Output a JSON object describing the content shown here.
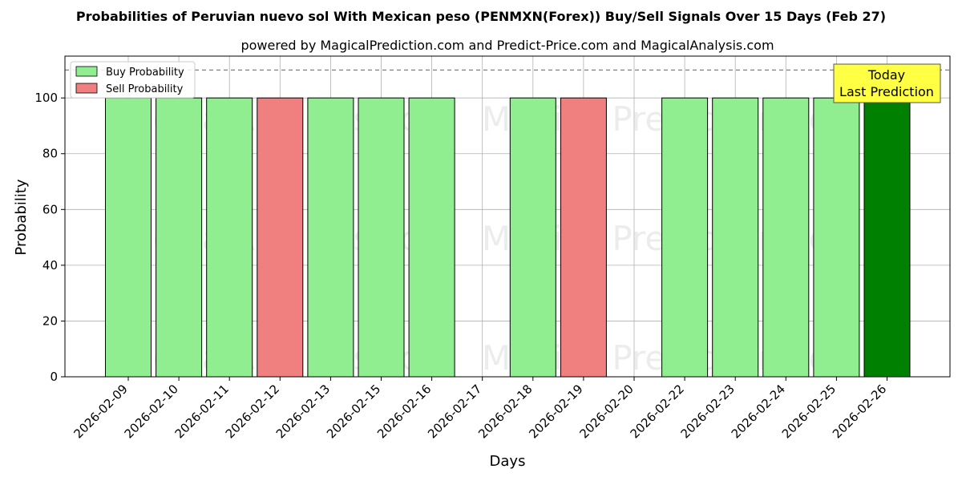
{
  "chart_data": {
    "type": "bar",
    "title": "Probabilities of Peruvian nuevo sol With Mexican peso (PENMXN(Forex)) Buy/Sell Signals Over 15 Days (Feb 27)",
    "subtitle": "powered by MagicalPrediction.com and Predict-Price.com and MagicalAnalysis.com",
    "xlabel": "Days",
    "ylabel": "Probability",
    "ylim": [
      0,
      115
    ],
    "yticks": [
      0,
      20,
      40,
      60,
      80,
      100
    ],
    "reference_line": 110,
    "grid": true,
    "legend_position": "top-left",
    "categories": [
      "2026-02-09",
      "2026-02-10",
      "2026-02-11",
      "2026-02-12",
      "2026-02-13",
      "2026-02-15",
      "2026-02-16",
      "2026-02-17",
      "2026-02-18",
      "2026-02-19",
      "2026-02-20",
      "2026-02-22",
      "2026-02-23",
      "2026-02-24",
      "2026-02-25",
      "2026-02-26"
    ],
    "bars": [
      {
        "date": "2026-02-09",
        "signal": "buy",
        "value": 100
      },
      {
        "date": "2026-02-10",
        "signal": "buy",
        "value": 100
      },
      {
        "date": "2026-02-11",
        "signal": "buy",
        "value": 100
      },
      {
        "date": "2026-02-12",
        "signal": "sell",
        "value": 100
      },
      {
        "date": "2026-02-13",
        "signal": "buy",
        "value": 100
      },
      {
        "date": "2026-02-15",
        "signal": "buy",
        "value": 100
      },
      {
        "date": "2026-02-16",
        "signal": "buy",
        "value": 100
      },
      {
        "date": "2026-02-18",
        "signal": "buy",
        "value": 100
      },
      {
        "date": "2026-02-19",
        "signal": "sell",
        "value": 100
      },
      {
        "date": "2026-02-22",
        "signal": "buy",
        "value": 100
      },
      {
        "date": "2026-02-23",
        "signal": "buy",
        "value": 100
      },
      {
        "date": "2026-02-24",
        "signal": "buy",
        "value": 100
      },
      {
        "date": "2026-02-25",
        "signal": "buy",
        "value": 100
      },
      {
        "date": "2026-02-26",
        "signal": "today",
        "value": 100
      }
    ],
    "legend": [
      {
        "label": "Buy Probability",
        "color": "#90ee90"
      },
      {
        "label": "Sell Probability",
        "color": "#f08080"
      }
    ],
    "annotation": {
      "line1": "Today",
      "line2": "Last Prediction"
    },
    "colors": {
      "buy": "#90ee90",
      "sell": "#f08080",
      "today": "#008000"
    },
    "watermarks": [
      "MagicalAnalysis.com",
      "Magica Prediction.com"
    ]
  }
}
